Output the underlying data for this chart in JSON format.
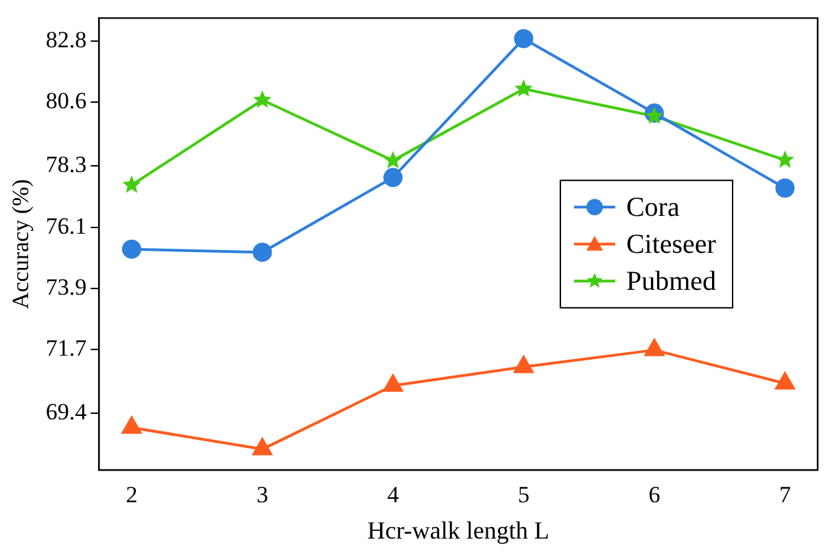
{
  "chart_data": {
    "type": "line",
    "xlabel": "Hcr-walk length L",
    "ylabel": "Accuracy (%)",
    "x": [
      2,
      3,
      4,
      5,
      6,
      7
    ],
    "xlim": [
      1.75,
      7.25
    ],
    "xticks": [
      2,
      3,
      4,
      5,
      6,
      7
    ],
    "ylim": [
      67.36,
      83.63
    ],
    "yticks": [
      69.4,
      71.7,
      73.9,
      76.1,
      78.3,
      80.6,
      82.8
    ],
    "legend": "right",
    "series": [
      {
        "name": "Cora",
        "color": "#2f7fdc",
        "marker": "circle",
        "values": [
          75.31,
          75.2,
          77.89,
          82.89,
          80.21,
          77.51
        ]
      },
      {
        "name": "Citeseer",
        "color": "#fd5c1f",
        "marker": "triangle",
        "values": [
          68.89,
          68.11,
          70.4,
          71.07,
          71.68,
          70.48
        ]
      },
      {
        "name": "Pubmed",
        "color": "#44cc11",
        "marker": "star",
        "values": [
          77.62,
          80.68,
          78.5,
          81.08,
          80.1,
          78.52
        ]
      }
    ]
  }
}
